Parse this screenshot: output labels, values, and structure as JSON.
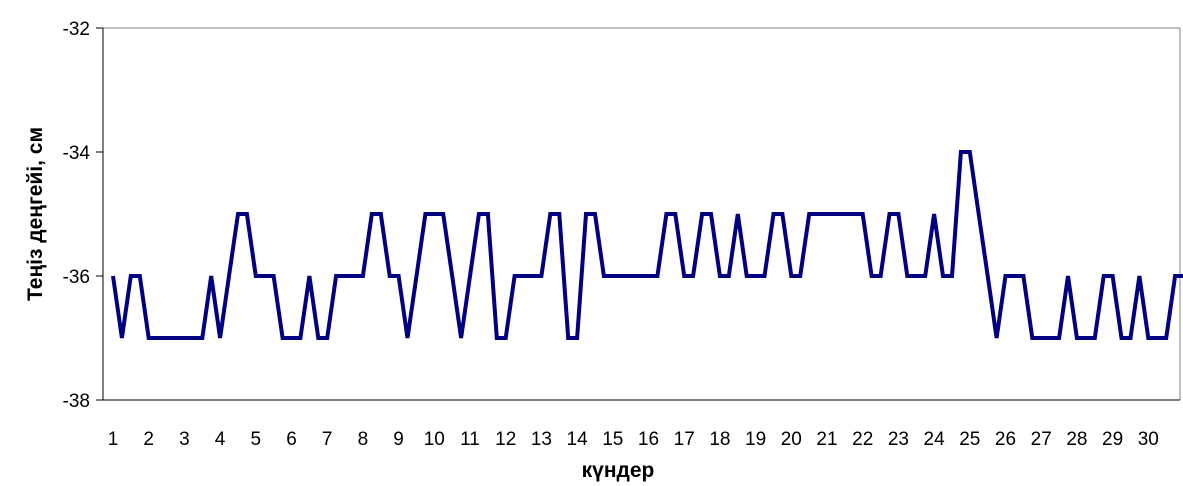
{
  "chart_data": {
    "type": "line",
    "title": "",
    "xlabel": "күндер",
    "ylabel": "Теңіз деңгейі, см",
    "ylim": [
      -38,
      -32
    ],
    "yticks": [
      -32,
      -34,
      -36,
      -38
    ],
    "x_ticks": [
      "1",
      "2",
      "3",
      "4",
      "5",
      "6",
      "7",
      "8",
      "9",
      "10",
      "11",
      "12",
      "13",
      "14",
      "15",
      "16",
      "17",
      "18",
      "19",
      "20",
      "21",
      "22",
      "23",
      "24",
      "25",
      "26",
      "27",
      "28",
      "29",
      "30"
    ],
    "grid": false,
    "legend": "none",
    "series": [
      {
        "color": "#000080",
        "x": [
          1.0,
          1.25,
          1.5,
          1.75,
          2.0,
          2.25,
          2.5,
          2.75,
          3.0,
          3.25,
          3.5,
          3.75,
          4.0,
          4.25,
          4.5,
          4.75,
          5.0,
          5.25,
          5.5,
          5.75,
          6.0,
          6.25,
          6.5,
          6.75,
          7.0,
          7.25,
          7.5,
          7.75,
          8.0,
          8.25,
          8.5,
          8.75,
          9.0,
          9.25,
          9.5,
          9.75,
          10.0,
          10.25,
          10.5,
          10.75,
          11.0,
          11.25,
          11.5,
          11.75,
          12.0,
          12.25,
          12.5,
          12.75,
          13.0,
          13.25,
          13.5,
          13.75,
          14.0,
          14.25,
          14.5,
          14.75,
          15.0,
          15.25,
          15.5,
          15.75,
          16.0,
          16.25,
          16.5,
          16.75,
          17.0,
          17.25,
          17.5,
          17.75,
          18.0,
          18.25,
          18.5,
          18.75,
          19.0,
          19.25,
          19.5,
          19.75,
          20.0,
          20.25,
          20.5,
          20.75,
          21.0,
          21.25,
          21.5,
          21.75,
          22.0,
          22.25,
          22.5,
          22.75,
          23.0,
          23.25,
          23.5,
          23.75,
          24.0,
          24.25,
          24.5,
          24.75,
          25.0,
          25.25,
          25.5,
          25.75,
          26.0,
          26.25,
          26.5,
          26.75,
          27.0,
          27.25,
          27.5,
          27.75,
          28.0,
          28.25,
          28.5,
          28.75,
          29.0,
          29.25,
          29.5,
          29.75,
          30.0,
          30.25,
          30.5,
          30.75,
          31.0
        ],
        "y": [
          -36,
          -37,
          -36,
          -36,
          -37,
          -37,
          -37,
          -37,
          -37,
          -37,
          -37,
          -36,
          -37,
          -36,
          -35,
          -35,
          -36,
          -36,
          -36,
          -37,
          -37,
          -37,
          -36,
          -37,
          -37,
          -36,
          -36,
          -36,
          -36,
          -35,
          -35,
          -36,
          -36,
          -37,
          -36,
          -35,
          -35,
          -35,
          -36,
          -37,
          -36,
          -35,
          -35,
          -37,
          -37,
          -36,
          -36,
          -36,
          -36,
          -35,
          -35,
          -37,
          -37,
          -35,
          -35,
          -36,
          -36,
          -36,
          -36,
          -36,
          -36,
          -36,
          -35,
          -35,
          -36,
          -36,
          -35,
          -35,
          -36,
          -36,
          -35,
          -36,
          -36,
          -36,
          -35,
          -35,
          -36,
          -36,
          -35,
          -35,
          -35,
          -35,
          -35,
          -35,
          -35,
          -36,
          -36,
          -35,
          -35,
          -36,
          -36,
          -36,
          -35,
          -36,
          -36,
          -34,
          -34,
          -35,
          -36,
          -37,
          -36,
          -36,
          -36,
          -37,
          -37,
          -37,
          -37,
          -36,
          -37,
          -37,
          -37,
          -36,
          -36,
          -37,
          -37,
          -36,
          -37,
          -37,
          -37,
          -36,
          -36
        ]
      }
    ]
  }
}
